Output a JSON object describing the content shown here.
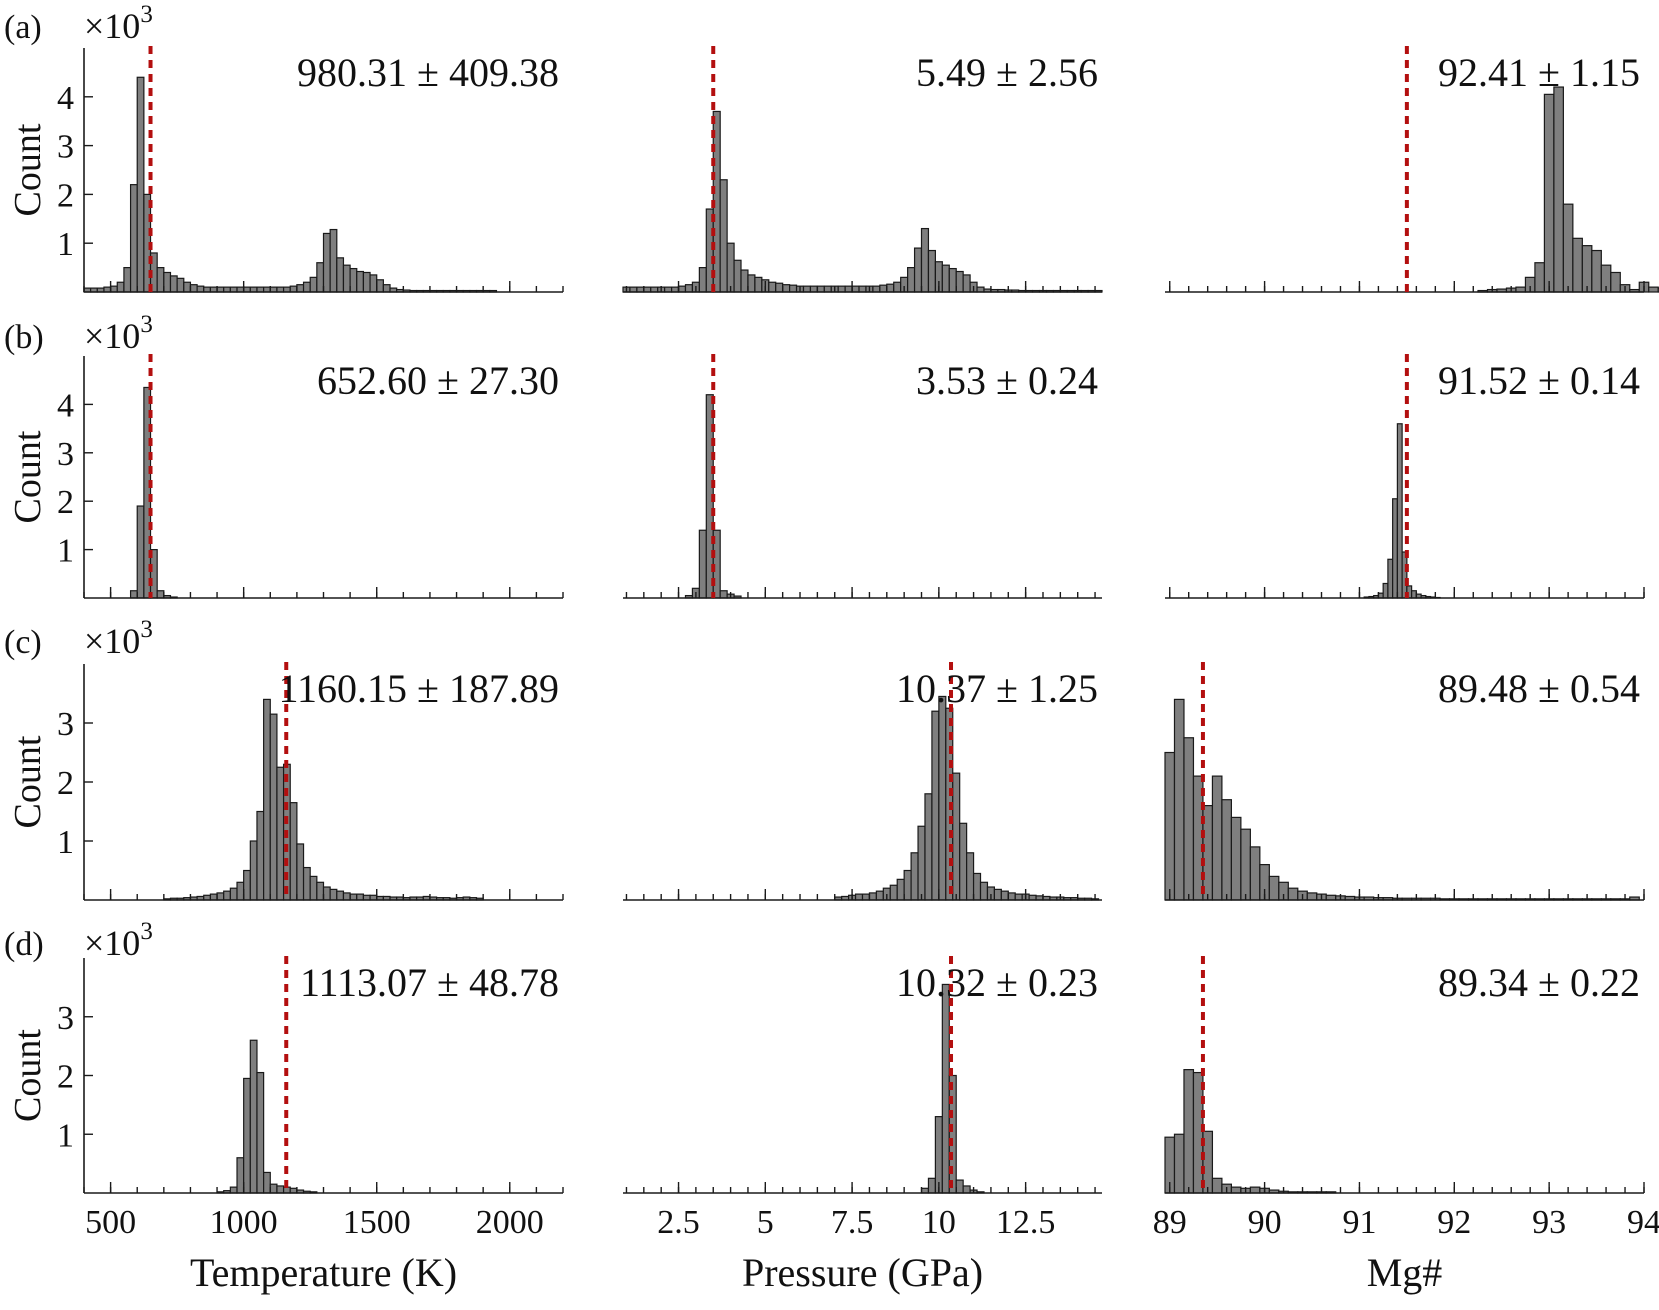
{
  "colors": {
    "bar": "#7f7f7f",
    "bar_edge": "#1a1a1a",
    "ref_line": "#b30f0f"
  },
  "figure": {
    "ylabel": "Count",
    "scale_label": "×10",
    "scale_exponent": "3",
    "xlabels": [
      "Temperature (K)",
      "Pressure (GPa)",
      "Mg#"
    ]
  },
  "columns": [
    {
      "xlim": [
        400,
        2200
      ],
      "ticks": [
        500,
        1000,
        1500,
        2000
      ],
      "tick_labels": [
        "500",
        "1000",
        "1500",
        "2000"
      ],
      "minor_step": 100
    },
    {
      "xlim": [
        0.9,
        14.7
      ],
      "ticks": [
        2.5,
        5,
        7.5,
        10,
        12.5
      ],
      "tick_labels": [
        "2.5",
        "5",
        "7.5",
        "10",
        "12.5"
      ],
      "minor_step": 0.5
    },
    {
      "xlim": [
        88.95,
        94.0
      ],
      "ticks": [
        89,
        90,
        91,
        92,
        93,
        94
      ],
      "tick_labels": [
        "89",
        "90",
        "91",
        "92",
        "93",
        "94"
      ],
      "minor_step": 0.2
    }
  ],
  "chart_data": [
    {
      "type": "bar",
      "panel": "(a)",
      "xlabel": "",
      "ylabel": "Count",
      "ylim": [
        0,
        5
      ],
      "yticks": [
        1,
        2,
        3,
        4
      ],
      "grid": false,
      "subplots": [
        {
          "stat": "980.31 ± 409.38",
          "ref_value": 650,
          "bin_start": 400,
          "bin_width": 25,
          "counts": [
            0.08,
            0.08,
            0.08,
            0.1,
            0.12,
            0.2,
            0.5,
            2.2,
            4.4,
            2.0,
            0.8,
            0.5,
            0.4,
            0.33,
            0.28,
            0.2,
            0.15,
            0.12,
            0.1,
            0.1,
            0.1,
            0.1,
            0.1,
            0.1,
            0.1,
            0.1,
            0.1,
            0.1,
            0.1,
            0.1,
            0.1,
            0.12,
            0.15,
            0.2,
            0.3,
            0.6,
            1.2,
            1.28,
            0.7,
            0.55,
            0.48,
            0.42,
            0.4,
            0.35,
            0.25,
            0.15,
            0.08,
            0.05,
            0.04,
            0.03,
            0.03,
            0.03,
            0.03,
            0.03,
            0.03,
            0.03,
            0.03,
            0.03,
            0.03,
            0.03,
            0.03,
            0.03
          ]
        },
        {
          "stat": "5.49 ± 2.56",
          "ref_value": 3.5,
          "bin_start": 0.9,
          "bin_width": 0.2,
          "counts": [
            0.1,
            0.1,
            0.1,
            0.1,
            0.1,
            0.1,
            0.1,
            0.1,
            0.12,
            0.15,
            0.2,
            0.5,
            1.7,
            3.7,
            2.3,
            1.0,
            0.65,
            0.45,
            0.35,
            0.3,
            0.25,
            0.2,
            0.18,
            0.15,
            0.14,
            0.12,
            0.12,
            0.12,
            0.12,
            0.12,
            0.12,
            0.12,
            0.12,
            0.12,
            0.12,
            0.12,
            0.12,
            0.14,
            0.16,
            0.2,
            0.3,
            0.5,
            0.9,
            1.3,
            0.85,
            0.62,
            0.55,
            0.48,
            0.42,
            0.35,
            0.2,
            0.1,
            0.06,
            0.05,
            0.05,
            0.04,
            0.04,
            0.03,
            0.03,
            0.03,
            0.03,
            0.03,
            0.03,
            0.03,
            0.03,
            0.03,
            0.03,
            0.03,
            0.03
          ]
        },
        {
          "stat": "92.41 ± 1.15",
          "ref_value": 91.5,
          "bin_start": 88.95,
          "bin_width": 0.1,
          "counts": [
            0,
            0,
            0,
            0,
            0,
            0,
            0,
            0,
            0,
            0,
            0,
            0,
            0,
            0,
            0,
            0,
            0,
            0,
            0,
            0,
            0,
            0,
            0,
            0,
            0,
            0,
            0,
            0,
            0,
            0,
            0,
            0,
            0,
            0.03,
            0.05,
            0.06,
            0.08,
            0.1,
            0.3,
            0.6,
            4.05,
            4.2,
            1.8,
            1.1,
            0.95,
            0.85,
            0.55,
            0.4,
            0.15,
            0.05,
            0.2,
            0.1,
            0.08,
            0.05,
            0.02,
            0.01,
            0,
            0,
            0,
            0,
            0,
            0,
            0,
            0,
            0,
            0,
            0,
            0,
            0,
            0,
            0,
            0,
            0,
            0,
            0,
            0,
            0,
            0,
            0,
            0,
            0,
            0,
            0,
            0,
            0,
            0,
            0,
            0,
            0,
            0,
            0,
            0,
            0,
            0,
            0,
            0,
            0,
            0,
            0.02,
            0.15,
            3.2,
            3.42
          ]
        }
      ]
    },
    {
      "type": "bar",
      "panel": "(b)",
      "xlabel": "",
      "ylabel": "Count",
      "ylim": [
        0,
        5
      ],
      "yticks": [
        1,
        2,
        3,
        4
      ],
      "grid": false,
      "subplots": [
        {
          "stat": "652.60 ± 27.30",
          "ref_value": 650,
          "bin_start": 575,
          "bin_width": 25,
          "counts": [
            0.15,
            1.9,
            4.35,
            1.0,
            0.15,
            0.05,
            0.02
          ]
        },
        {
          "stat": "3.53 ± 0.24",
          "ref_value": 3.5,
          "bin_start": 2.7,
          "bin_width": 0.2,
          "counts": [
            0.05,
            0.2,
            1.4,
            4.2,
            1.4,
            0.15,
            0.08,
            0.04
          ]
        },
        {
          "stat": "91.52 ± 0.14",
          "ref_value": 91.5,
          "bin_start": 91.05,
          "bin_width": 0.05,
          "counts": [
            0.02,
            0.03,
            0.05,
            0.1,
            0.3,
            0.8,
            2.05,
            3.6,
            0.95,
            0.25,
            0.15,
            0.08,
            0.05,
            0.03,
            0.02,
            0.01
          ]
        }
      ]
    },
    {
      "type": "bar",
      "panel": "(c)",
      "xlabel": "",
      "ylabel": "Count",
      "ylim": [
        0,
        4
      ],
      "yticks": [
        1,
        2,
        3
      ],
      "grid": false,
      "subplots": [
        {
          "stat": "1160.15 ± 187.89",
          "ref_value": 1160,
          "bin_start": 700,
          "bin_width": 25,
          "counts": [
            0.02,
            0.03,
            0.03,
            0.04,
            0.05,
            0.06,
            0.08,
            0.1,
            0.12,
            0.15,
            0.2,
            0.3,
            0.5,
            1.0,
            1.5,
            3.4,
            3.15,
            2.25,
            2.3,
            1.65,
            0.95,
            0.55,
            0.4,
            0.3,
            0.22,
            0.18,
            0.15,
            0.12,
            0.1,
            0.1,
            0.08,
            0.08,
            0.06,
            0.06,
            0.05,
            0.05,
            0.04,
            0.05,
            0.05,
            0.06,
            0.05,
            0.04,
            0.04,
            0.03,
            0.04,
            0.05,
            0.04,
            0.03
          ]
        },
        {
          "stat": "10.37 ± 1.25",
          "ref_value": 10.35,
          "bin_start": 7.0,
          "bin_width": 0.2,
          "counts": [
            0.05,
            0.06,
            0.08,
            0.1,
            0.1,
            0.12,
            0.15,
            0.2,
            0.25,
            0.35,
            0.5,
            0.8,
            1.25,
            1.8,
            3.2,
            3.45,
            3.25,
            2.15,
            1.3,
            0.8,
            0.45,
            0.3,
            0.22,
            0.18,
            0.15,
            0.12,
            0.1,
            0.1,
            0.08,
            0.07,
            0.06,
            0.05,
            0.05,
            0.04,
            0.04,
            0.03,
            0.03,
            0.02
          ]
        },
        {
          "stat": "89.48 ± 0.54",
          "ref_value": 89.35,
          "bin_start": 88.95,
          "bin_width": 0.1,
          "counts": [
            2.5,
            3.4,
            2.75,
            2.1,
            1.6,
            2.1,
            1.7,
            1.4,
            1.2,
            0.9,
            0.6,
            0.4,
            0.3,
            0.2,
            0.15,
            0.12,
            0.1,
            0.08,
            0.07,
            0.06,
            0.05,
            0.05,
            0.04,
            0.04,
            0.03,
            0.03,
            0.03,
            0.03,
            0.03,
            0.02,
            0.02,
            0.02,
            0.02,
            0.02,
            0.02,
            0.02,
            0.02,
            0.02,
            0.02,
            0.02,
            0.02,
            0.02,
            0.02,
            0.02,
            0.02,
            0.02,
            0.02,
            0.02,
            0.02,
            0.05
          ]
        }
      ]
    },
    {
      "type": "bar",
      "panel": "(d)",
      "xlabel": "",
      "ylabel": "Count",
      "ylim": [
        0,
        4
      ],
      "yticks": [
        1,
        2,
        3
      ],
      "grid": false,
      "subplots": [
        {
          "stat": "1113.07 ± 48.78",
          "ref_value": 1160,
          "bin_start": 900,
          "bin_width": 25,
          "counts": [
            0.02,
            0.04,
            0.1,
            0.6,
            1.95,
            2.6,
            2.05,
            0.35,
            0.15,
            0.12,
            0.1,
            0.08,
            0.05,
            0.03,
            0.02
          ]
        },
        {
          "stat": "10.32 ± 0.23",
          "ref_value": 10.35,
          "bin_start": 9.5,
          "bin_width": 0.2,
          "counts": [
            0.08,
            0.25,
            1.3,
            3.55,
            2.0,
            0.22,
            0.12,
            0.05,
            0.02
          ]
        },
        {
          "stat": "89.34 ± 0.22",
          "ref_value": 89.35,
          "bin_start": 88.95,
          "bin_width": 0.1,
          "counts": [
            0.95,
            1.0,
            2.1,
            2.05,
            1.05,
            0.25,
            0.15,
            0.1,
            0.08,
            0.1,
            0.08,
            0.05,
            0.03,
            0.02,
            0.02,
            0.02,
            0.02,
            0.02
          ]
        }
      ]
    }
  ]
}
